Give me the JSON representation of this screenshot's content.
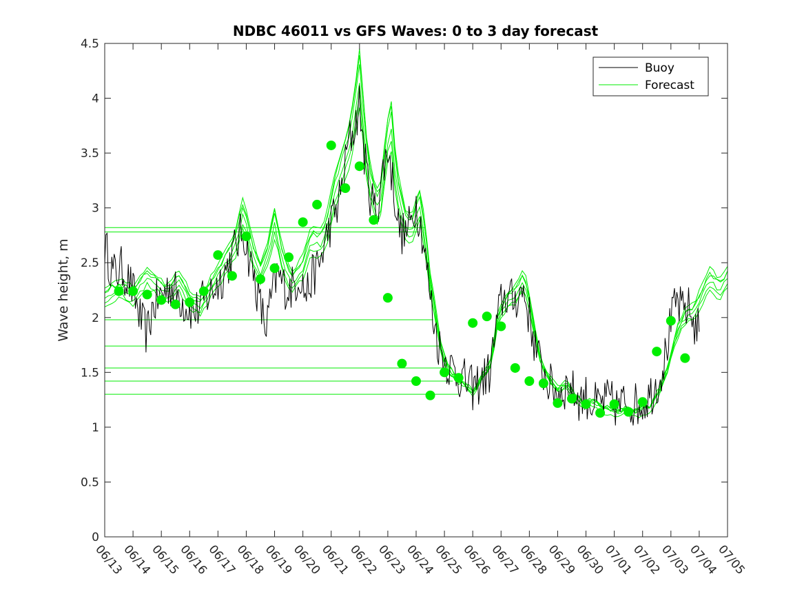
{
  "chart_data": {
    "type": "line",
    "title": "NDBC 46011 vs GFS Waves: 0 to 3 day forecast",
    "xlabel": "",
    "ylabel": "Wave height, m",
    "x_tick_labels": [
      "06/13",
      "06/14",
      "06/15",
      "06/16",
      "06/17",
      "06/18",
      "06/19",
      "06/20",
      "06/21",
      "06/22",
      "06/23",
      "06/24",
      "06/25",
      "06/26",
      "06/27",
      "06/28",
      "06/29",
      "06/30",
      "07/01",
      "07/02",
      "07/03",
      "07/04",
      "07/05"
    ],
    "y_ticks": [
      "0",
      "0.5",
      "1",
      "1.5",
      "2",
      "2.5",
      "3",
      "3.5",
      "4",
      "4.5"
    ],
    "ylim": [
      0,
      4.5
    ],
    "xlim_days": [
      0,
      22
    ],
    "grid": false,
    "legend": {
      "position": "top-right",
      "entries": [
        {
          "name": "Buoy",
          "color": "#000000"
        },
        {
          "name": "Forecast",
          "color": "#00ee00"
        }
      ]
    },
    "colors": {
      "buoy": "#000000",
      "forecast": "#00ee00",
      "markers": "#00ee00"
    },
    "buoy_anchors": [
      [
        0.0,
        2.65
      ],
      [
        0.3,
        2.4
      ],
      [
        0.6,
        2.45
      ],
      [
        0.9,
        2.3
      ],
      [
        1.1,
        2.15
      ],
      [
        1.3,
        1.95
      ],
      [
        1.5,
        1.85
      ],
      [
        1.7,
        2.1
      ],
      [
        2.0,
        2.2
      ],
      [
        2.3,
        2.3
      ],
      [
        2.6,
        2.2
      ],
      [
        2.9,
        2.1
      ],
      [
        3.2,
        2.05
      ],
      [
        3.5,
        2.15
      ],
      [
        3.8,
        2.25
      ],
      [
        4.1,
        2.35
      ],
      [
        4.4,
        2.5
      ],
      [
        4.7,
        2.7
      ],
      [
        4.9,
        2.8
      ],
      [
        5.1,
        2.55
      ],
      [
        5.3,
        2.35
      ],
      [
        5.5,
        2.1
      ],
      [
        5.7,
        1.9
      ],
      [
        5.9,
        2.2
      ],
      [
        6.1,
        2.4
      ],
      [
        6.3,
        2.3
      ],
      [
        6.5,
        2.25
      ],
      [
        6.7,
        2.3
      ],
      [
        6.9,
        2.4
      ],
      [
        7.1,
        2.2
      ],
      [
        7.3,
        2.35
      ],
      [
        7.6,
        2.5
      ],
      [
        7.9,
        2.8
      ],
      [
        8.2,
        3.0
      ],
      [
        8.4,
        3.2
      ],
      [
        8.6,
        3.6
      ],
      [
        8.8,
        3.7
      ],
      [
        9.0,
        3.95
      ],
      [
        9.2,
        3.4
      ],
      [
        9.4,
        3.1
      ],
      [
        9.6,
        2.95
      ],
      [
        9.8,
        3.3
      ],
      [
        10.0,
        3.55
      ],
      [
        10.2,
        3.2
      ],
      [
        10.4,
        2.8
      ],
      [
        10.6,
        2.75
      ],
      [
        10.8,
        2.85
      ],
      [
        11.0,
        3.05
      ],
      [
        11.2,
        2.8
      ],
      [
        11.4,
        2.4
      ],
      [
        11.6,
        2.0
      ],
      [
        11.8,
        1.75
      ],
      [
        12.0,
        1.62
      ],
      [
        12.2,
        1.55
      ],
      [
        12.4,
        1.5
      ],
      [
        12.6,
        1.45
      ],
      [
        12.8,
        1.4
      ],
      [
        13.0,
        1.35
      ],
      [
        13.2,
        1.4
      ],
      [
        13.4,
        1.45
      ],
      [
        13.6,
        1.5
      ],
      [
        13.8,
        1.85
      ],
      [
        14.0,
        2.15
      ],
      [
        14.2,
        2.2
      ],
      [
        14.4,
        2.15
      ],
      [
        14.6,
        2.2
      ],
      [
        14.8,
        2.25
      ],
      [
        15.0,
        2.0
      ],
      [
        15.2,
        1.75
      ],
      [
        15.4,
        1.55
      ],
      [
        15.6,
        1.45
      ],
      [
        15.8,
        1.35
      ],
      [
        16.0,
        1.32
      ],
      [
        16.2,
        1.35
      ],
      [
        16.4,
        1.38
      ],
      [
        16.6,
        1.3
      ],
      [
        16.8,
        1.25
      ],
      [
        17.0,
        1.28
      ],
      [
        17.2,
        1.22
      ],
      [
        17.4,
        1.2
      ],
      [
        17.6,
        1.22
      ],
      [
        17.8,
        1.25
      ],
      [
        18.0,
        1.2
      ],
      [
        18.2,
        1.18
      ],
      [
        18.4,
        1.25
      ],
      [
        18.6,
        1.22
      ],
      [
        18.8,
        1.2
      ],
      [
        19.0,
        1.22
      ],
      [
        19.2,
        1.28
      ],
      [
        19.4,
        1.35
      ],
      [
        19.6,
        1.45
      ],
      [
        19.8,
        1.65
      ],
      [
        20.0,
        1.95
      ],
      [
        20.2,
        2.15
      ],
      [
        20.4,
        2.05
      ],
      [
        20.6,
        2.1
      ],
      [
        20.8,
        1.95
      ],
      [
        21.0,
        1.9
      ]
    ],
    "forecast_series": [
      {
        "offset": 0.0,
        "scale": 1.0
      },
      {
        "offset": 0.05,
        "scale": 1.03
      },
      {
        "offset": -0.04,
        "scale": 0.98
      },
      {
        "offset": 0.08,
        "scale": 1.06
      },
      {
        "offset": -0.07,
        "scale": 0.96
      },
      {
        "offset": 0.03,
        "scale": 1.09
      }
    ],
    "forecast_anchors": [
      [
        0.0,
        2.2
      ],
      [
        0.5,
        2.25
      ],
      [
        1.0,
        2.2
      ],
      [
        1.5,
        2.35
      ],
      [
        1.8,
        2.3
      ],
      [
        2.2,
        2.2
      ],
      [
        2.6,
        2.35
      ],
      [
        3.0,
        2.15
      ],
      [
        3.4,
        2.1
      ],
      [
        3.8,
        2.3
      ],
      [
        4.2,
        2.45
      ],
      [
        4.6,
        2.65
      ],
      [
        4.9,
        2.95
      ],
      [
        5.2,
        2.6
      ],
      [
        5.5,
        2.4
      ],
      [
        5.8,
        2.6
      ],
      [
        6.0,
        2.85
      ],
      [
        6.3,
        2.5
      ],
      [
        6.6,
        2.3
      ],
      [
        7.0,
        2.45
      ],
      [
        7.3,
        2.7
      ],
      [
        7.6,
        2.65
      ],
      [
        7.9,
        2.85
      ],
      [
        8.1,
        3.1
      ],
      [
        8.4,
        3.35
      ],
      [
        8.7,
        3.6
      ],
      [
        9.0,
        4.15
      ],
      [
        9.3,
        3.3
      ],
      [
        9.5,
        3.1
      ],
      [
        9.7,
        2.95
      ],
      [
        9.9,
        3.4
      ],
      [
        10.1,
        3.8
      ],
      [
        10.3,
        3.2
      ],
      [
        10.6,
        2.85
      ],
      [
        10.9,
        2.8
      ],
      [
        11.1,
        3.05
      ],
      [
        11.3,
        2.75
      ],
      [
        11.5,
        2.3
      ],
      [
        11.7,
        2.0
      ],
      [
        11.9,
        1.7
      ],
      [
        12.1,
        1.55
      ],
      [
        12.4,
        1.45
      ],
      [
        12.7,
        1.4
      ],
      [
        13.0,
        1.33
      ],
      [
        13.3,
        1.45
      ],
      [
        13.6,
        1.55
      ],
      [
        13.9,
        2.0
      ],
      [
        14.2,
        2.15
      ],
      [
        14.5,
        2.2
      ],
      [
        14.8,
        2.35
      ],
      [
        15.1,
        2.0
      ],
      [
        15.4,
        1.6
      ],
      [
        15.7,
        1.45
      ],
      [
        16.0,
        1.35
      ],
      [
        16.3,
        1.4
      ],
      [
        16.6,
        1.3
      ],
      [
        16.9,
        1.22
      ],
      [
        17.2,
        1.25
      ],
      [
        17.5,
        1.2
      ],
      [
        17.8,
        1.18
      ],
      [
        18.1,
        1.15
      ],
      [
        18.4,
        1.17
      ],
      [
        18.7,
        1.15
      ],
      [
        19.0,
        1.18
      ],
      [
        19.3,
        1.2
      ],
      [
        19.6,
        1.35
      ],
      [
        19.9,
        1.55
      ],
      [
        20.2,
        1.85
      ],
      [
        20.5,
        2.0
      ],
      [
        20.8,
        2.05
      ],
      [
        21.1,
        2.2
      ],
      [
        21.4,
        2.35
      ],
      [
        21.7,
        2.25
      ],
      [
        22.0,
        2.35
      ]
    ],
    "forecast_initial_levels": [
      {
        "value": 2.82,
        "end_day": 11.3
      },
      {
        "value": 2.78,
        "end_day": 11.1
      },
      {
        "value": 1.98,
        "end_day": 11.6
      },
      {
        "value": 1.74,
        "end_day": 11.8
      },
      {
        "value": 1.54,
        "end_day": 12.0
      },
      {
        "value": 1.42,
        "end_day": 12.3
      },
      {
        "value": 1.3,
        "end_day": 12.5
      }
    ],
    "markers": [
      [
        0.5,
        2.24
      ],
      [
        1.0,
        2.24
      ],
      [
        1.5,
        2.21
      ],
      [
        2.0,
        2.16
      ],
      [
        2.5,
        2.12
      ],
      [
        3.0,
        2.14
      ],
      [
        3.5,
        2.24
      ],
      [
        4.0,
        2.57
      ],
      [
        4.5,
        2.38
      ],
      [
        5.0,
        2.74
      ],
      [
        5.5,
        2.35
      ],
      [
        6.0,
        2.45
      ],
      [
        6.5,
        2.55
      ],
      [
        7.0,
        2.87
      ],
      [
        7.5,
        3.03
      ],
      [
        8.0,
        3.57
      ],
      [
        8.5,
        3.18
      ],
      [
        9.0,
        3.38
      ],
      [
        9.5,
        2.89
      ],
      [
        10.0,
        2.18
      ],
      [
        10.5,
        1.58
      ],
      [
        11.0,
        1.42
      ],
      [
        11.5,
        1.29
      ],
      [
        12.0,
        1.5
      ],
      [
        12.5,
        1.45
      ],
      [
        13.0,
        1.95
      ],
      [
        13.5,
        2.01
      ],
      [
        14.0,
        1.92
      ],
      [
        14.5,
        1.54
      ],
      [
        15.0,
        1.42
      ],
      [
        15.5,
        1.4
      ],
      [
        16.0,
        1.22
      ],
      [
        16.5,
        1.26
      ],
      [
        17.0,
        1.21
      ],
      [
        17.5,
        1.13
      ],
      [
        18.0,
        1.21
      ],
      [
        18.5,
        1.14
      ],
      [
        19.0,
        1.23
      ],
      [
        19.5,
        1.69
      ],
      [
        20.0,
        1.97
      ],
      [
        20.5,
        1.63
      ]
    ]
  }
}
